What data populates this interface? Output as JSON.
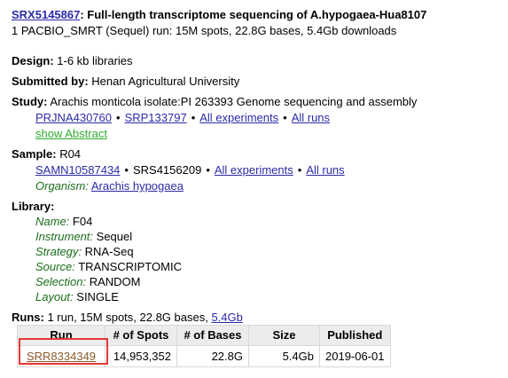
{
  "header": {
    "accession": "SRX5145867",
    "accession_suffix": ": Full-length transcriptome sequencing of A.hypogaea-Hua8107",
    "run_summary": "1 PACBIO_SMRT (Sequel) run: 15M spots, 22.8G bases, 5.4Gb downloads"
  },
  "design": {
    "label": "Design:",
    "value": " 1-6 kb libraries"
  },
  "submitted": {
    "label": "Submitted by:",
    "value": " Henan Agricultural University"
  },
  "study": {
    "label": "Study:",
    "value": " Arachis monticola isolate:PI 263393 Genome sequencing and assembly",
    "link_bioproject": "PRJNA430760",
    "link_srp": "SRP133797",
    "link_all_experiments": "All experiments",
    "link_all_runs": "All runs",
    "show_abstract": "show Abstract",
    "bullet": "•"
  },
  "sample": {
    "label": "Sample:",
    "value": " R04",
    "link_biosample": "SAMN10587434",
    "srs": "SRS4156209",
    "link_all_experiments": "All experiments",
    "link_all_runs": "All runs",
    "organism_label": "Organism:",
    "organism_link": "Arachis hypogaea",
    "bullet": "•"
  },
  "library": {
    "label": "Library:",
    "fields": [
      {
        "key": "Name:",
        "value": " F04"
      },
      {
        "key": "Instrument:",
        "value": " Sequel"
      },
      {
        "key": "Strategy:",
        "value": " RNA-Seq"
      },
      {
        "key": "Source:",
        "value": " TRANSCRIPTOMIC"
      },
      {
        "key": "Selection:",
        "value": " RANDOM"
      },
      {
        "key": "Layout:",
        "value": " SINGLE"
      }
    ]
  },
  "runs": {
    "label": "Runs:",
    "summary": " 1 run, 15M spots, 22.8G bases, ",
    "download_link": "5.4Gb",
    "columns": [
      "Run",
      "# of Spots",
      "# of Bases",
      "Size",
      "Published"
    ],
    "rows": [
      {
        "run": "SRR8334349",
        "spots": "14,953,352",
        "bases": "22.8G",
        "size": "5.4Gb",
        "published": "2019-06-01"
      }
    ],
    "highlight_color": "#e53935"
  }
}
